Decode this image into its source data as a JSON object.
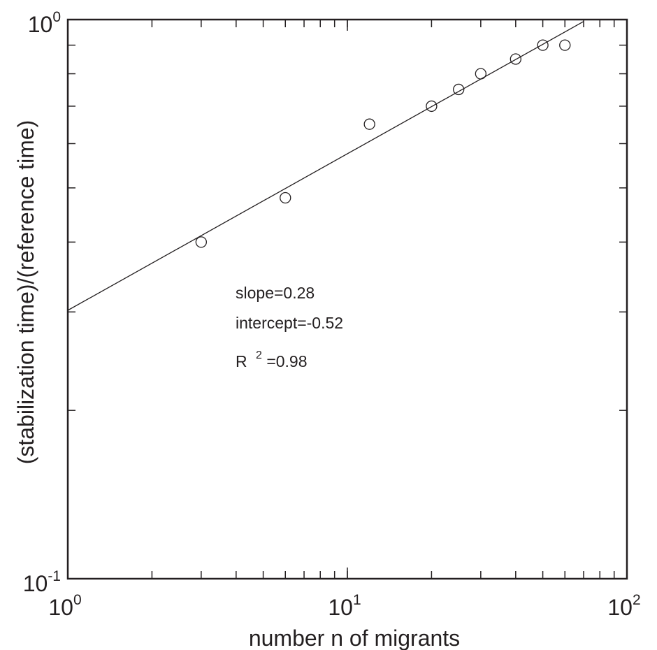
{
  "chart_data": {
    "type": "scatter",
    "title": "",
    "xlabel": "number n of migrants",
    "ylabel": "(stabilization time)/(reference time)",
    "x_scale": "log",
    "y_scale": "log",
    "xlim": [
      1,
      100
    ],
    "ylim": [
      0.1,
      1
    ],
    "grid": false,
    "legend": "none",
    "x_tick_labels": [
      {
        "base": "10",
        "exp": "0"
      },
      {
        "base": "10",
        "exp": "1"
      },
      {
        "base": "10",
        "exp": "2"
      }
    ],
    "y_tick_labels": [
      {
        "base": "10",
        "exp": "-1"
      },
      {
        "base": "10",
        "exp": "0"
      }
    ],
    "series": [
      {
        "marker": "open-circle",
        "x": [
          3,
          6,
          12,
          20,
          25,
          30,
          40,
          50,
          60
        ],
        "y": [
          0.4,
          0.48,
          0.65,
          0.7,
          0.75,
          0.8,
          0.85,
          0.9,
          0.9
        ]
      }
    ],
    "fit_line": {
      "slope": 0.28,
      "intercept": -0.52,
      "x_range": [
        1,
        70
      ]
    },
    "annotations": {
      "slope": "slope=0.28",
      "intercept": "intercept=-0.52",
      "r2_prefix": "R",
      "r2_sup": "2",
      "r2_value": "=0.98"
    },
    "colors": {
      "ink": "#231f20",
      "background": "#ffffff"
    }
  }
}
